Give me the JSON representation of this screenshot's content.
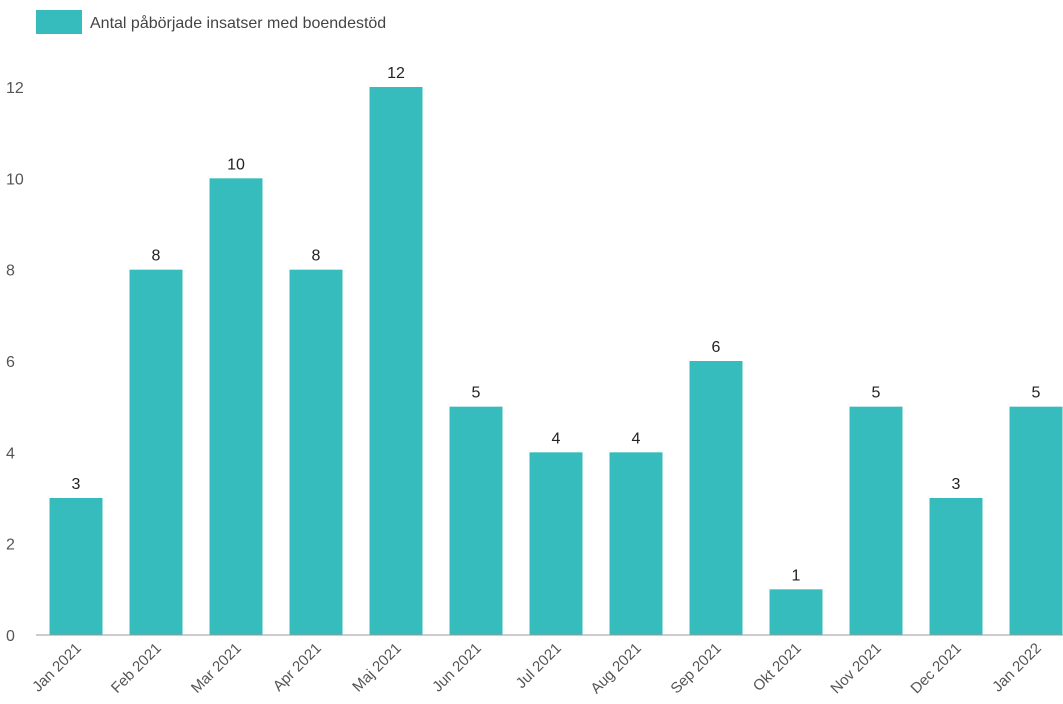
{
  "chart_data": {
    "type": "bar",
    "title": "",
    "xlabel": "",
    "ylabel": "",
    "categories": [
      "Jan 2021",
      "Feb 2021",
      "Mar 2021",
      "Apr 2021",
      "Maj 2021",
      "Jun 2021",
      "Jul 2021",
      "Aug 2021",
      "Sep 2021",
      "Okt 2021",
      "Nov 2021",
      "Dec 2021",
      "Jan 2022"
    ],
    "series": [
      {
        "name": "Antal påbörjade insatser med boendestöd",
        "values": [
          3,
          8,
          10,
          8,
          12,
          5,
          4,
          4,
          6,
          1,
          5,
          3,
          5
        ],
        "color": "#36BCBC"
      }
    ],
    "ylim": [
      0,
      12
    ],
    "yticks": [
      "0",
      "2",
      "4",
      "6",
      "8",
      "10",
      "12"
    ],
    "grid": false,
    "legend": "top-left",
    "data_labels": true
  }
}
